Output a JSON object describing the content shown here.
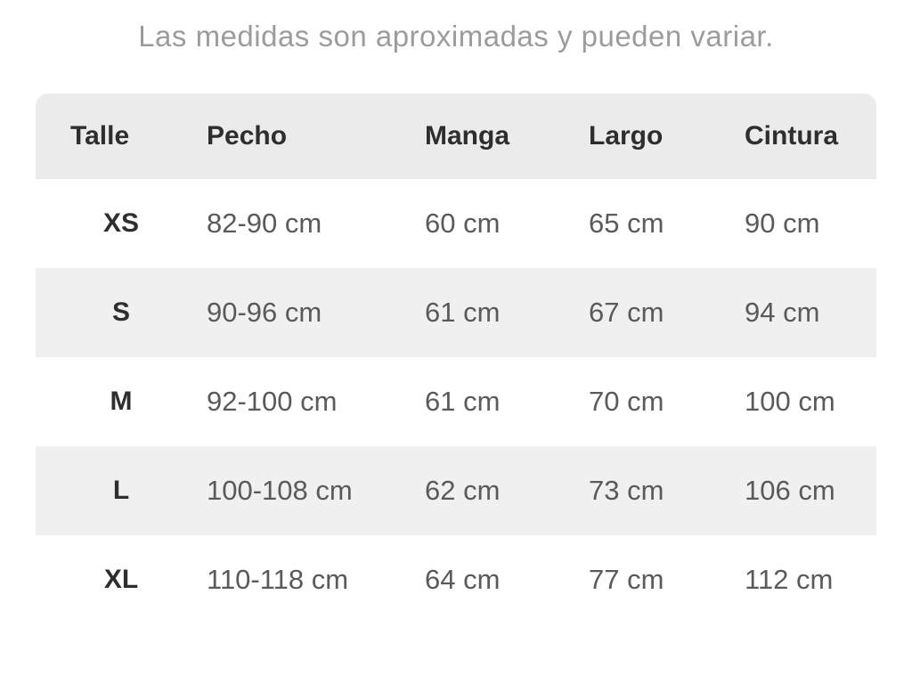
{
  "page": {
    "title": "Las medidas son aproximadas y pueden variar."
  },
  "colors": {
    "background": "#ffffff",
    "header_bg": "#ebebeb",
    "stripe_row_bg": "#f0f0f0",
    "title_text": "#9c9c9c",
    "heading_text": "#2e2e2e",
    "value_text": "#5a5a5a"
  },
  "chart_data": {
    "type": "table",
    "title": "Las medidas son aproximadas y pueden variar.",
    "columns": [
      "Talle",
      "Pecho",
      "Manga",
      "Largo",
      "Cintura"
    ],
    "rows": [
      [
        "XS",
        "82-90 cm",
        "60 cm",
        "65 cm",
        "90 cm"
      ],
      [
        "S",
        "90-96 cm",
        "61 cm",
        "67 cm",
        "94 cm"
      ],
      [
        "M",
        "92-100 cm",
        "61 cm",
        "70 cm",
        "100 cm"
      ],
      [
        "L",
        "100-108 cm",
        "62 cm",
        "73 cm",
        "106 cm"
      ],
      [
        "XL",
        "110-118 cm",
        "64 cm",
        "77 cm",
        "112 cm"
      ]
    ],
    "units": "cm",
    "layout": {
      "striped": true,
      "header_rounded_top": true,
      "legend_position": "none",
      "grid": false
    }
  }
}
